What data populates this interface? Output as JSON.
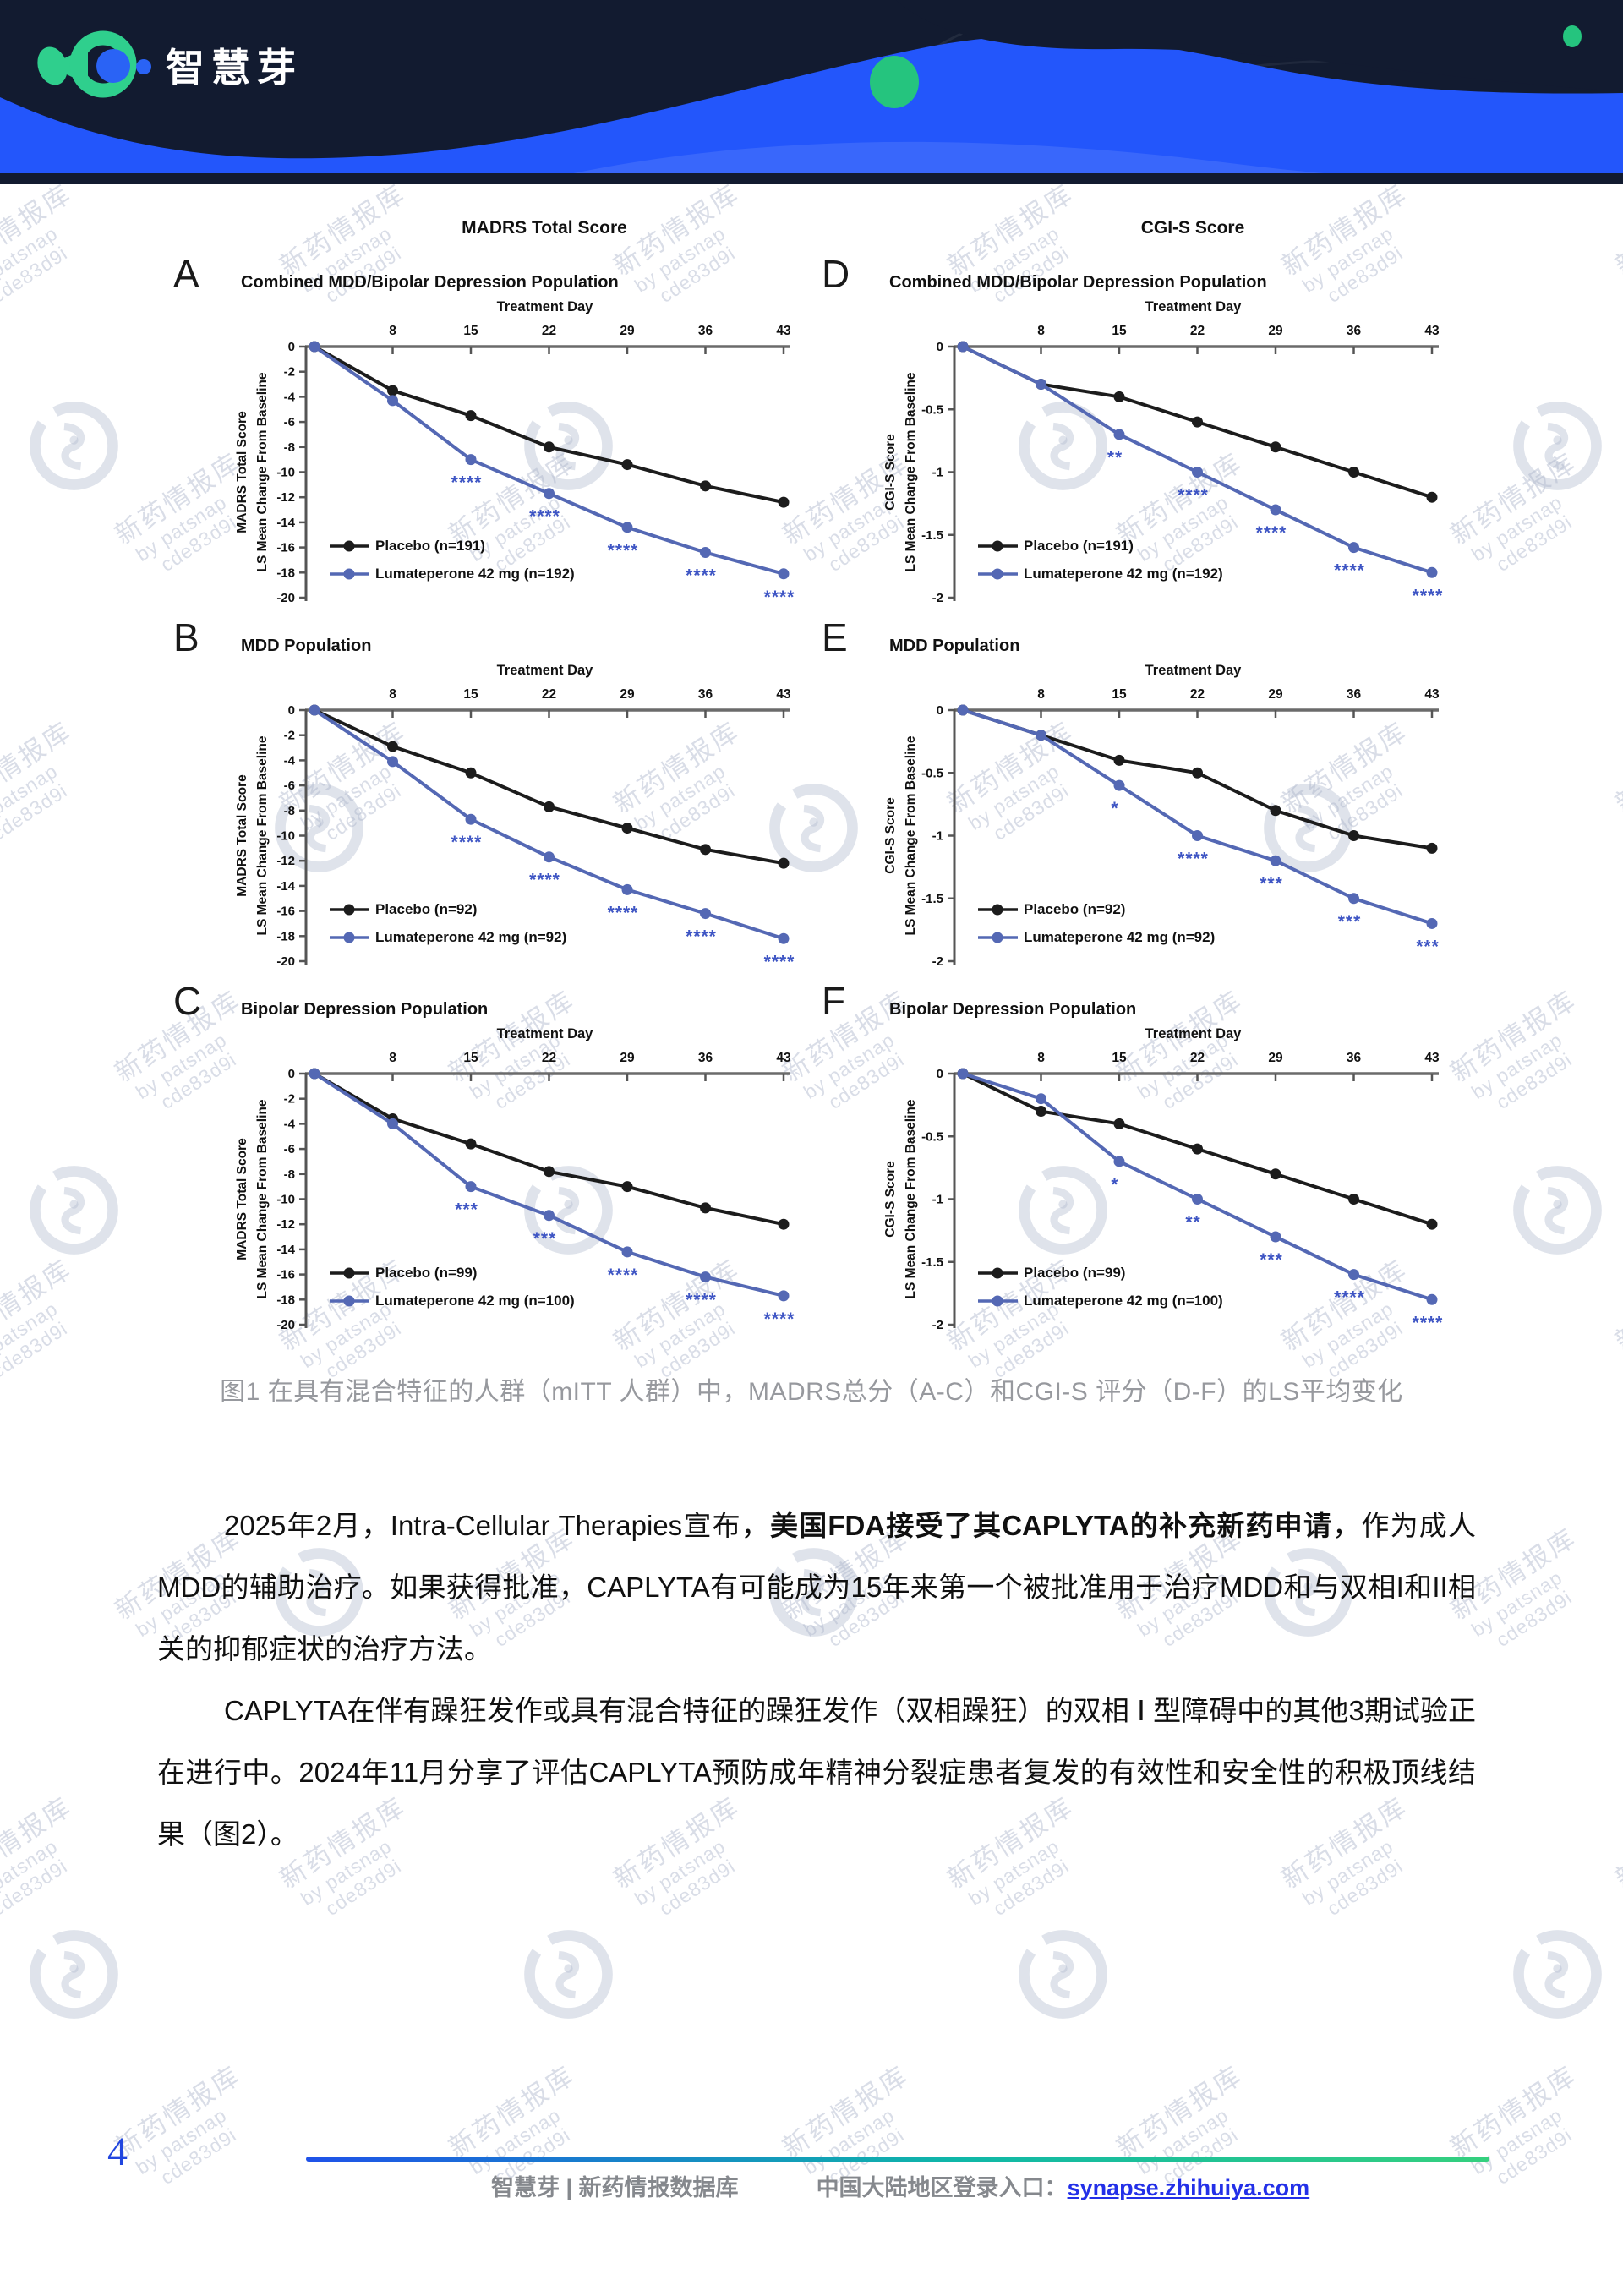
{
  "header": {
    "logo_text": "智慧芽"
  },
  "watermark": {
    "line1": "新药情报库",
    "line2": "by patsnap",
    "line3": "cde83d9i"
  },
  "figure": {
    "left_title": "MADRS Total Score",
    "right_title": "CGI-S Score",
    "caption": "图1  在具有混合特征的人群（mITT 人群）中，MADRS总分（A-C）和CGI-S 评分（D-F）的LS平均变化"
  },
  "chart_data": [
    {
      "type": "line",
      "panel": "A",
      "column": "left",
      "subtitle": "Combined MDD/Bipolar Depression Population",
      "xlabel": "Treatment Day",
      "x": [
        1,
        8,
        15,
        22,
        29,
        36,
        43
      ],
      "x_ticks": [
        8,
        15,
        22,
        29,
        36,
        43
      ],
      "ylabel_line1": "MADRS Total Score",
      "ylabel_line2": "LS Mean Change From Baseline",
      "ylim": [
        0,
        -20
      ],
      "yticks": [
        0,
        -2,
        -4,
        -6,
        -8,
        -10,
        -12,
        -14,
        -16,
        -18,
        -20
      ],
      "series": [
        {
          "name": "Placebo (n=191)",
          "color": "#1c1c1c",
          "values": [
            0,
            -3.5,
            -5.5,
            -8.0,
            -9.4,
            -11.1,
            -12.4
          ]
        },
        {
          "name": "Lumateperone 42 mg (n=192)",
          "color": "#5468b4",
          "values": [
            0,
            -4.3,
            -9.0,
            -11.7,
            -14.4,
            -16.4,
            -18.1
          ],
          "stars": [
            "",
            "",
            "****",
            "****",
            "****",
            "****",
            "****"
          ]
        }
      ]
    },
    {
      "type": "line",
      "panel": "B",
      "column": "left",
      "subtitle": "MDD Population",
      "xlabel": "Treatment Day",
      "x": [
        1,
        8,
        15,
        22,
        29,
        36,
        43
      ],
      "x_ticks": [
        8,
        15,
        22,
        29,
        36,
        43
      ],
      "ylabel_line1": "MADRS Total Score",
      "ylabel_line2": "LS Mean Change From Baseline",
      "ylim": [
        0,
        -20
      ],
      "yticks": [
        0,
        -2,
        -4,
        -6,
        -8,
        -10,
        -12,
        -14,
        -16,
        -18,
        -20
      ],
      "series": [
        {
          "name": "Placebo (n=92)",
          "color": "#1c1c1c",
          "values": [
            0,
            -2.9,
            -5.0,
            -7.7,
            -9.4,
            -11.1,
            -12.2
          ]
        },
        {
          "name": "Lumateperone 42 mg (n=92)",
          "color": "#5468b4",
          "values": [
            0,
            -4.1,
            -8.7,
            -11.7,
            -14.3,
            -16.2,
            -18.2
          ],
          "stars": [
            "",
            "",
            "****",
            "****",
            "****",
            "****",
            "****"
          ]
        }
      ]
    },
    {
      "type": "line",
      "panel": "C",
      "column": "left",
      "subtitle": "Bipolar Depression Population",
      "xlabel": "Treatment Day",
      "x": [
        1,
        8,
        15,
        22,
        29,
        36,
        43
      ],
      "x_ticks": [
        8,
        15,
        22,
        29,
        36,
        43
      ],
      "ylabel_line1": "MADRS Total Score",
      "ylabel_line2": "LS Mean Change From Baseline",
      "ylim": [
        0,
        -20
      ],
      "yticks": [
        0,
        -2,
        -4,
        -6,
        -8,
        -10,
        -12,
        -14,
        -16,
        -18,
        -20
      ],
      "series": [
        {
          "name": "Placebo (n=99)",
          "color": "#1c1c1c",
          "values": [
            0,
            -3.6,
            -5.6,
            -7.8,
            -9.0,
            -10.7,
            -12.0
          ]
        },
        {
          "name": "Lumateperone 42 mg (n=100)",
          "color": "#5468b4",
          "values": [
            0,
            -4.0,
            -9.0,
            -11.3,
            -14.2,
            -16.2,
            -17.7
          ],
          "stars": [
            "",
            "",
            "***",
            "***",
            "****",
            "****",
            "****"
          ]
        }
      ]
    },
    {
      "type": "line",
      "panel": "D",
      "column": "right",
      "subtitle": "Combined MDD/Bipolar Depression Population",
      "xlabel": "Treatment Day",
      "x": [
        1,
        8,
        15,
        22,
        29,
        36,
        43
      ],
      "x_ticks": [
        8,
        15,
        22,
        29,
        36,
        43
      ],
      "ylabel_line1": "CGI-S Score",
      "ylabel_line2": "LS Mean Change From Baseline",
      "ylim": [
        0,
        -2
      ],
      "yticks": [
        0,
        -0.5,
        -1,
        -1.5,
        -2
      ],
      "series": [
        {
          "name": "Placebo (n=191)",
          "color": "#1c1c1c",
          "values": [
            0,
            -0.3,
            -0.4,
            -0.6,
            -0.8,
            -1.0,
            -1.2
          ]
        },
        {
          "name": "Lumateperone 42 mg (n=192)",
          "color": "#5468b4",
          "values": [
            0,
            -0.3,
            -0.7,
            -1.0,
            -1.3,
            -1.6,
            -1.8
          ],
          "stars": [
            "",
            "",
            "**",
            "****",
            "****",
            "****",
            "****"
          ]
        }
      ]
    },
    {
      "type": "line",
      "panel": "E",
      "column": "right",
      "subtitle": "MDD Population",
      "xlabel": "Treatment Day",
      "x": [
        1,
        8,
        15,
        22,
        29,
        36,
        43
      ],
      "x_ticks": [
        8,
        15,
        22,
        29,
        36,
        43
      ],
      "ylabel_line1": "CGI-S Score",
      "ylabel_line2": "LS Mean Change From Baseline",
      "ylim": [
        0,
        -2
      ],
      "yticks": [
        0,
        -0.5,
        -1,
        -1.5,
        -2
      ],
      "series": [
        {
          "name": "Placebo (n=92)",
          "color": "#1c1c1c",
          "values": [
            0,
            -0.2,
            -0.4,
            -0.5,
            -0.8,
            -1.0,
            -1.1
          ]
        },
        {
          "name": "Lumateperone 42 mg (n=92)",
          "color": "#5468b4",
          "values": [
            0,
            -0.2,
            -0.6,
            -1.0,
            -1.2,
            -1.5,
            -1.7
          ],
          "stars": [
            "",
            "",
            "*",
            "****",
            "***",
            "***",
            "***"
          ]
        }
      ]
    },
    {
      "type": "line",
      "panel": "F",
      "column": "right",
      "subtitle": "Bipolar Depression Population",
      "xlabel": "Treatment Day",
      "x": [
        1,
        8,
        15,
        22,
        29,
        36,
        43
      ],
      "x_ticks": [
        8,
        15,
        22,
        29,
        36,
        43
      ],
      "ylabel_line1": "CGI-S Score",
      "ylabel_line2": "LS Mean Change From Baseline",
      "ylim": [
        0,
        -2
      ],
      "yticks": [
        0,
        -0.5,
        -1,
        -1.5,
        -2
      ],
      "series": [
        {
          "name": "Placebo (n=99)",
          "color": "#1c1c1c",
          "values": [
            0,
            -0.3,
            -0.4,
            -0.6,
            -0.8,
            -1.0,
            -1.2
          ]
        },
        {
          "name": "Lumateperone 42 mg (n=100)",
          "color": "#5468b4",
          "values": [
            0,
            -0.2,
            -0.7,
            -1.0,
            -1.3,
            -1.6,
            -1.8
          ],
          "stars": [
            "",
            "",
            "*",
            "**",
            "***",
            "****",
            "****"
          ]
        }
      ]
    }
  ],
  "paragraphs": {
    "p1_pre": "2025年2月，Intra-Cellular Therapies宣布，",
    "p1_bold": "美国FDA接受了其CAPLYTA的补充新药申请",
    "p1_post": "，作为成人MDD的辅助治疗。如果获得批准，CAPLYTA有可能成为15年来第一个被批准用于治疗MDD和与双相I和II相关的抑郁症状的治疗方法。",
    "p2": "CAPLYTA在伴有躁狂发作或具有混合特征的躁狂发作（双相躁狂）的双相 Ⅰ 型障碍中的其他3期试验正在进行中。2024年11月分享了评估CAPLYTA预防成年精神分裂症患者复发的有效性和安全性的积极顶线结果（图2）。"
  },
  "footer": {
    "page_number": "4",
    "brand": "智慧芽 | 新药情报数据库",
    "login_label": "中国大陆地区登录入口：",
    "login_url": "synapse.zhihuiya.com"
  },
  "colors": {
    "header_navy": "#121b30",
    "wave_blue": "#2356fb",
    "logo_green": "#2fcf8d",
    "logo_blue": "#2a63f5",
    "placebo_line": "#1c1c1c",
    "lumateperone_line": "#5468b4",
    "star_blue": "#3e55c4",
    "link_blue": "#2330e8",
    "footer_gradient": [
      "#1f52e9",
      "#0fb7a8",
      "#35d07e"
    ]
  }
}
